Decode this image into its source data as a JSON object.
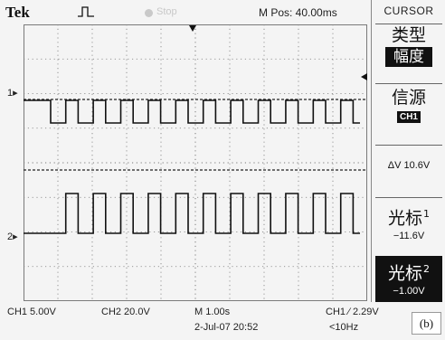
{
  "header": {
    "brand": "Tek",
    "run_state": "Stop",
    "m_pos": "M Pos: 40.00ms"
  },
  "menu": {
    "title": "CURSOR",
    "type_label": "类型",
    "type_value": "幅度",
    "source_label": "信源",
    "source_value": "CH1",
    "delta": "ΔV 10.6V",
    "cursor1_label": "光标",
    "cursor1_index": "1",
    "cursor1_value": "−11.6V",
    "cursor2_label": "光标",
    "cursor2_index": "2",
    "cursor2_value": "−1.00V"
  },
  "markers": {
    "ch1": "1",
    "ch2": "2"
  },
  "status": {
    "ch1_scale": "CH1  5.00V",
    "ch2_scale": "CH2  20.0V",
    "timebase": "M 1.00s",
    "trigger": "CH1  ∕  2.29V",
    "date": "2-Jul-07 20:52",
    "freq": "<10Hz"
  },
  "figure_label": "(b)",
  "colors": {
    "background": "#f4f4f4",
    "trace": "#111111",
    "grid": "#7a7a7a"
  },
  "waveforms": {
    "period_divisions": 0.8,
    "duty_low_fraction": 0.55,
    "ch1_cursor_divisions": [
      -11.6,
      -1.0
    ]
  }
}
